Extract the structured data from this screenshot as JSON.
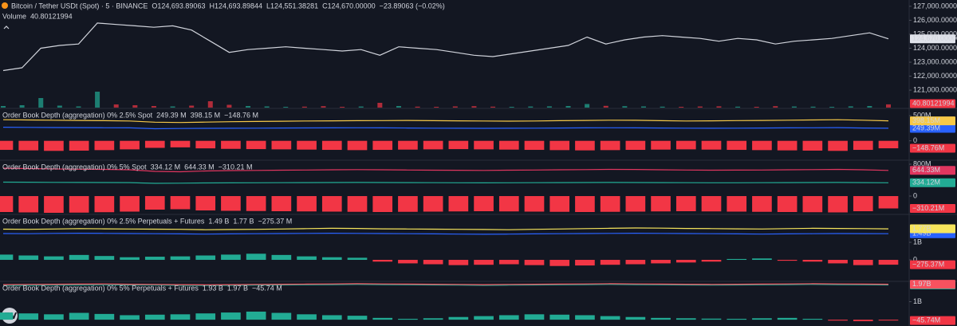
{
  "chart_data": [
    {
      "type": "line",
      "title": "Bitcoin / Tether USDt (Spot) · 5 · BINANCE",
      "quote": [
        "O124,693.89063",
        "H124,693.89844",
        "L124,551.38281",
        "C124,670.00000",
        "−23.89063 (−0.02%)"
      ],
      "color": "#d1d4dc",
      "quote_color": "#f23645",
      "values": [
        122400,
        122600,
        124000,
        124200,
        124300,
        125800,
        125700,
        125600,
        125500,
        125600,
        125300,
        124500,
        123700,
        123900,
        124000,
        124100,
        124000,
        123900,
        123800,
        123900,
        123500,
        124100,
        124000,
        123900,
        123700,
        123500,
        123400,
        123600,
        123800,
        124000,
        124200,
        124800,
        124300,
        124600,
        124800,
        124900,
        124800,
        124700,
        124500,
        124700,
        124600,
        124300,
        124500,
        124600,
        124700,
        124900,
        125100,
        124670
      ],
      "last_label": "124,670.00000",
      "ylim": [
        119750,
        127450
      ],
      "yticks": [
        {
          "value": 121000,
          "label": "121,000.00000"
        },
        {
          "value": 122000,
          "label": "122,000.00000"
        },
        {
          "value": 123000,
          "label": "123,000.00000"
        },
        {
          "value": 124000,
          "label": "124,000.00000"
        },
        {
          "value": 125000,
          "label": "125,000.00000"
        },
        {
          "value": 126000,
          "label": "126,000.00000"
        },
        {
          "value": 127000,
          "label": "127,000.00000"
        }
      ],
      "volume": {
        "label": "Volume",
        "up_color": "#22ab94",
        "down_color": "#f23645",
        "ylim": [
          0,
          400
        ],
        "values": [
          20,
          30,
          120,
          25,
          15,
          200,
          40,
          30,
          20,
          15,
          25,
          80,
          35,
          20,
          15,
          10,
          12,
          18,
          10,
          14,
          60,
          20,
          12,
          10,
          15,
          18,
          12,
          10,
          14,
          16,
          20,
          45,
          22,
          18,
          15,
          12,
          10,
          14,
          16,
          12,
          10,
          18,
          14,
          12,
          10,
          16,
          20,
          40.80121994
        ],
        "value_label": "40.80121994"
      }
    },
    {
      "type": "line",
      "title": "Order Book Depth (aggregation) 0% 2.5% Spot",
      "ylim": [
        -370,
        645
      ],
      "yticks": [
        {
          "value": 500,
          "label": "500M"
        },
        0
      ],
      "series": [
        {
          "style": "line",
          "color": "#2962ff",
          "legend_label": "249.39 M",
          "axis_label": "249.39M",
          "values": [
            270,
            268,
            265,
            262,
            260,
            258,
            240,
            245,
            248,
            250,
            252,
            255,
            256,
            258,
            260,
            258,
            255,
            252,
            250,
            248,
            250,
            252,
            255,
            258,
            260,
            258,
            255,
            252,
            250,
            252,
            255,
            258,
            260,
            262,
            255,
            249.39
          ]
        },
        {
          "style": "line",
          "color": "#f7c948",
          "legend_label": "398.15 M",
          "axis_label": "398.15M",
          "values": [
            420,
            415,
            410,
            405,
            400,
            395,
            370,
            365,
            372,
            380,
            385,
            390,
            395,
            398,
            400,
            402,
            405,
            400,
            398,
            395,
            392,
            395,
            400,
            405,
            410,
            408,
            400,
            395,
            398,
            402,
            405,
            410,
            415,
            420,
            410,
            398.15
          ]
        },
        {
          "style": "bar",
          "color": "#22ab94",
          "negative_color": "#f23645",
          "legend_label": "−148.76 M",
          "axis_label": "−148.76M",
          "values": [
            -180,
            -190,
            -200,
            -195,
            -185,
            -170,
            -140,
            -130,
            -150,
            -160,
            -165,
            -170,
            -175,
            -180,
            -185,
            -180,
            -175,
            -170,
            -165,
            -170,
            -175,
            -180,
            -185,
            -190,
            -185,
            -180,
            -175,
            -170,
            -175,
            -180,
            -185,
            -190,
            -195,
            -200,
            -180,
            -148.76
          ]
        }
      ]
    },
    {
      "type": "line",
      "title": "Order Book Depth (aggregation) 0% 5% Spot",
      "ylim": [
        -440,
        900
      ],
      "yticks": [
        {
          "value": 800,
          "label": "800M"
        },
        0
      ],
      "series": [
        {
          "style": "line",
          "color": "#22ab94",
          "legend_label": "334.12 M",
          "axis_label": "334.12M",
          "values": [
            350,
            348,
            345,
            342,
            340,
            338,
            320,
            325,
            330,
            332,
            335,
            336,
            338,
            340,
            342,
            340,
            338,
            336,
            334,
            332,
            334,
            336,
            338,
            340,
            342,
            340,
            338,
            336,
            334,
            335,
            336,
            338,
            340,
            342,
            338,
            334.12
          ]
        },
        {
          "style": "line",
          "color": "#e0365f",
          "legend_label": "644.33 M",
          "axis_label": "644.33M",
          "values": [
            700,
            690,
            680,
            675,
            670,
            660,
            620,
            610,
            630,
            640,
            645,
            650,
            655,
            660,
            665,
            660,
            655,
            650,
            648,
            645,
            650,
            655,
            660,
            665,
            670,
            668,
            660,
            655,
            650,
            652,
            655,
            660,
            665,
            670,
            660,
            644.33
          ]
        },
        {
          "style": "bar",
          "color": "#22ab94",
          "negative_color": "#f23645",
          "legend_label": "−310.21 M",
          "axis_label": "−310.21M",
          "values": [
            -400,
            -410,
            -420,
            -415,
            -405,
            -390,
            -340,
            -330,
            -360,
            -370,
            -375,
            -380,
            -385,
            -390,
            -395,
            -400,
            -395,
            -390,
            -385,
            -380,
            -385,
            -390,
            -395,
            -400,
            -395,
            -390,
            -385,
            -380,
            -385,
            -390,
            -395,
            -400,
            -405,
            -410,
            -380,
            -310.21
          ]
        }
      ]
    },
    {
      "type": "line",
      "title": "Order Book Depth (aggregation) 0% 2.5% Perpetuals + Futures",
      "ylim": [
        -1180,
        2590
      ],
      "yticks": [
        {
          "value": 1000,
          "label": "1B"
        },
        0
      ],
      "series": [
        {
          "style": "line",
          "color": "#2962ff",
          "legend_label": "1.49 B",
          "axis_label": "1.49B",
          "values": [
            1500,
            1490,
            1510,
            1520,
            1510,
            1500,
            1490,
            1480,
            1470,
            1480,
            1490,
            1500,
            1510,
            1520,
            1510,
            1500,
            1490,
            1480,
            1470,
            1460,
            1470,
            1480,
            1490,
            1500,
            1510,
            1520,
            1510,
            1500,
            1490,
            1480,
            1470,
            1480,
            1490,
            1500,
            1495,
            1490
          ]
        },
        {
          "style": "line",
          "color": "#f7e55c",
          "legend_label": "1.77 B",
          "axis_label": "1.77B",
          "values": [
            1750,
            1740,
            1760,
            1780,
            1770,
            1760,
            1750,
            1740,
            1720,
            1730,
            1740,
            1760,
            1780,
            1800,
            1790,
            1770,
            1760,
            1750,
            1740,
            1730,
            1720,
            1740,
            1760,
            1780,
            1800,
            1820,
            1810,
            1790,
            1780,
            1770,
            1760,
            1780,
            1800,
            1790,
            1780,
            1770
          ]
        },
        {
          "style": "bar",
          "color": "#22ab94",
          "negative_color": "#f23645",
          "legend_label": "−275.37 M",
          "axis_label": "−275.37M",
          "values": [
            300,
            250,
            200,
            280,
            220,
            150,
            180,
            200,
            250,
            300,
            350,
            280,
            200,
            150,
            120,
            -100,
            -200,
            -250,
            -300,
            -280,
            -250,
            -300,
            -350,
            -320,
            -280,
            -250,
            -200,
            -150,
            -100,
            50,
            80,
            -50,
            -100,
            -200,
            -300,
            -275.37
          ]
        }
      ]
    },
    {
      "type": "line",
      "title": "Order Book Depth (aggregation) 0% 5% Perpetuals + Futures",
      "ylim": [
        -350,
        2130
      ],
      "yticks": [
        {
          "value": 1000,
          "label": "1B"
        }
      ],
      "series": [
        {
          "style": "line",
          "color": "#22ab94",
          "legend_label": "1.93 B",
          "axis_label": "1.93B",
          "values": [
            1900,
            1910,
            1920,
            1930,
            1940,
            1930,
            1920,
            1910,
            1900,
            1910,
            1920,
            1930,
            1940,
            1950,
            1960,
            1950,
            1940,
            1930,
            1920,
            1910,
            1920,
            1930,
            1940,
            1950,
            1960,
            1950,
            1940,
            1930,
            1920,
            1930,
            1940,
            1950,
            1960,
            1950,
            1940,
            1930
          ]
        },
        {
          "style": "line",
          "color": "#f7525f",
          "legend_label": "1.97 B",
          "axis_label": "1.97B",
          "values": [
            1950,
            1960,
            1970,
            1980,
            1990,
            1970,
            1960,
            1950,
            1940,
            1950,
            1960,
            1970,
            1980,
            1990,
            2000,
            1990,
            1980,
            1970,
            1960,
            1950,
            1960,
            1970,
            1980,
            1990,
            2000,
            1990,
            1980,
            1970,
            1960,
            1970,
            1980,
            1990,
            2000,
            1990,
            1980,
            1970
          ]
        },
        {
          "style": "bar",
          "color": "#22ab94",
          "negative_color": "#f23645",
          "legend_label": "−45.74 M",
          "axis_label": "−45.74M",
          "values": [
            400,
            350,
            300,
            380,
            320,
            250,
            280,
            300,
            350,
            400,
            450,
            380,
            300,
            250,
            220,
            100,
            50,
            80,
            150,
            200,
            250,
            300,
            280,
            250,
            200,
            150,
            100,
            80,
            60,
            50,
            80,
            100,
            50,
            -50,
            -80,
            -45.74
          ]
        }
      ]
    }
  ]
}
